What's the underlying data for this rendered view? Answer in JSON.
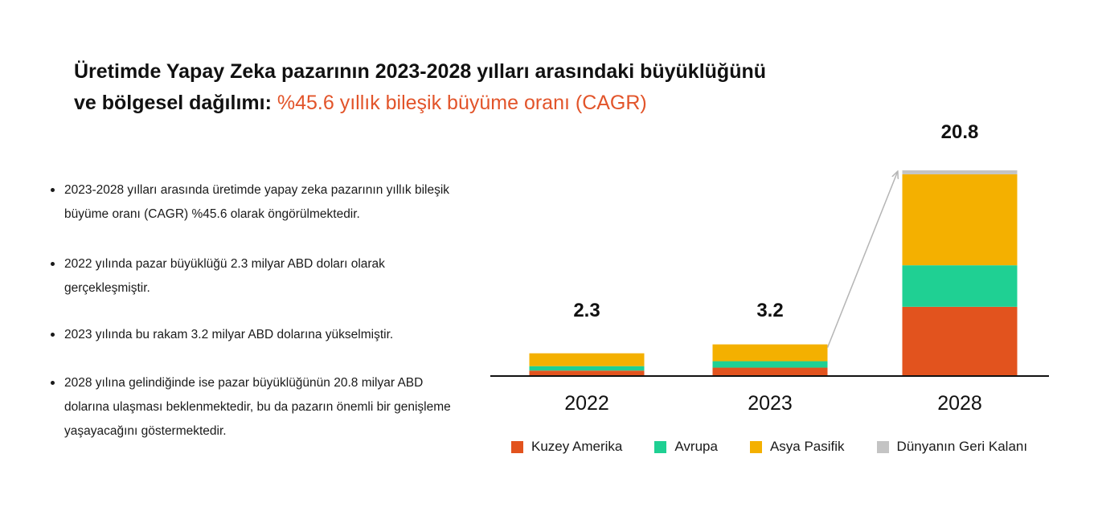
{
  "title": {
    "line1": "Üretimde Yapay Zeka pazarının 2023-2028 yılları arasındaki büyüklüğünü",
    "line2_bold": "ve bölgesel dağılımı:",
    "line2_accent": "%45.6 yıllık bileşik büyüme oranı (CAGR)"
  },
  "bullets": [
    "2023-2028 yılları arasında üretimde yapay zeka pazarının yıllık bileşik büyüme oranı (CAGR) %45.6 olarak öngörülmektedir.",
    "2022 yılında pazar büyüklüğü 2.3 milyar ABD doları olarak gerçekleşmiştir.",
    "2023 yılında bu rakam 3.2 milyar ABD dolarına yükselmiştir.",
    "2028 yılına gelindiğinde ise pazar büyüklüğünün 20.8 milyar ABD dolarına ulaşması beklenmektedir, bu da pazarın önemli bir genişleme yaşayacağını göstermektedir."
  ],
  "chart_data": {
    "type": "bar",
    "stacked": true,
    "categories": [
      "2022",
      "2023",
      "2028"
    ],
    "totals": [
      "2.3",
      "3.2",
      "20.8"
    ],
    "total_values": [
      2.3,
      3.2,
      20.8
    ],
    "series": [
      {
        "name": "Kuzey Amerika",
        "color": "#e2531e",
        "values": [
          0.55,
          0.85,
          7.0
        ]
      },
      {
        "name": "Avrupa",
        "color": "#1fd093",
        "values": [
          0.45,
          0.65,
          4.2
        ]
      },
      {
        "name": "Asya Pasifik",
        "color": "#f4b000",
        "values": [
          1.3,
          1.7,
          9.2
        ]
      },
      {
        "name": "Dünyanın Geri Kalanı",
        "color": "#c4c4c4",
        "values": [
          0.0,
          0.0,
          0.4
        ]
      }
    ],
    "ylim": [
      0,
      21
    ],
    "grid": false,
    "legend_position": "bottom",
    "annotation": "arrow from 2023 bar to 2028 bar"
  }
}
